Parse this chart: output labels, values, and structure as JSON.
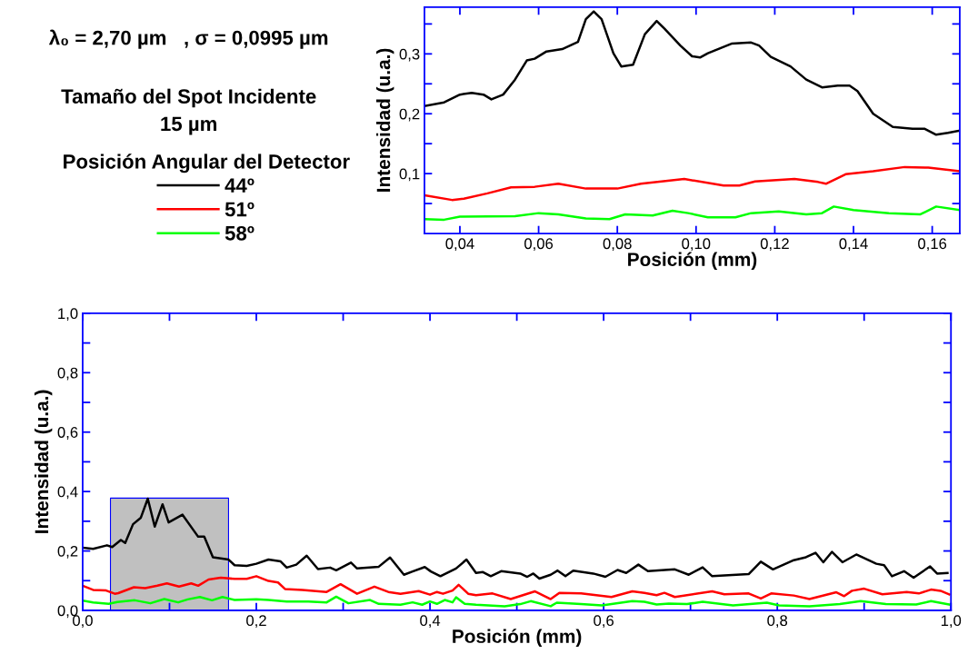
{
  "chart_data": [
    {
      "type": "line",
      "xlabel": "Posición (mm)",
      "ylabel": "Intensidad (u.a.)",
      "legend_title": "Posición Angular del Detector",
      "legend": "left",
      "grid": false,
      "annotations": [
        "λ₀ = 2,70 µm   , σ = 0,0995 µm",
        "Tamaño del Spot Incidente",
        "15 µm"
      ],
      "xlim": [
        0.031,
        0.167
      ],
      "xticks": [
        {
          "value": 0.04,
          "label": "0,04"
        },
        {
          "value": 0.06,
          "label": "0,06"
        },
        {
          "value": 0.08,
          "label": "0,08"
        },
        {
          "value": 0.1,
          "label": "0,10"
        },
        {
          "value": 0.12,
          "label": "0,12"
        },
        {
          "value": 0.14,
          "label": "0,14"
        },
        {
          "value": 0.16,
          "label": "0,16"
        }
      ],
      "ylim": [
        0,
        0.378
      ],
      "yticks": [
        {
          "value": 0.05,
          "label": null
        },
        {
          "value": 0.1,
          "label": "0,1"
        },
        {
          "value": 0.15,
          "label": null
        },
        {
          "value": 0.2,
          "label": "0,2"
        },
        {
          "value": 0.25,
          "label": null
        },
        {
          "value": 0.3,
          "label": "0,3"
        },
        {
          "value": 0.35,
          "label": null
        }
      ],
      "series": [
        {
          "name": "44º",
          "color": "#000000",
          "x": [
            0.031,
            0.036,
            0.04,
            0.043,
            0.046,
            0.048,
            0.051,
            0.054,
            0.057,
            0.059,
            0.062,
            0.066,
            0.07,
            0.072,
            0.074,
            0.076,
            0.079,
            0.081,
            0.084,
            0.087,
            0.09,
            0.092,
            0.096,
            0.099,
            0.101,
            0.103,
            0.106,
            0.109,
            0.114,
            0.116,
            0.119,
            0.124,
            0.128,
            0.132,
            0.136,
            0.139,
            0.141,
            0.145,
            0.15,
            0.155,
            0.158,
            0.161,
            0.164,
            0.167
          ],
          "values": [
            0.213,
            0.219,
            0.232,
            0.235,
            0.232,
            0.224,
            0.232,
            0.257,
            0.289,
            0.292,
            0.304,
            0.308,
            0.32,
            0.358,
            0.371,
            0.358,
            0.301,
            0.279,
            0.282,
            0.333,
            0.355,
            0.342,
            0.314,
            0.296,
            0.294,
            0.301,
            0.309,
            0.317,
            0.319,
            0.314,
            0.295,
            0.279,
            0.257,
            0.244,
            0.247,
            0.247,
            0.238,
            0.2,
            0.178,
            0.175,
            0.175,
            0.165,
            0.168,
            0.172
          ]
        },
        {
          "name": "51º",
          "color": "#ff0000",
          "x": [
            0.031,
            0.038,
            0.041,
            0.047,
            0.053,
            0.059,
            0.065,
            0.072,
            0.08,
            0.086,
            0.097,
            0.107,
            0.111,
            0.115,
            0.125,
            0.131,
            0.133,
            0.138,
            0.145,
            0.153,
            0.159,
            0.167
          ],
          "values": [
            0.064,
            0.056,
            0.058,
            0.067,
            0.077,
            0.078,
            0.083,
            0.075,
            0.075,
            0.083,
            0.091,
            0.08,
            0.08,
            0.087,
            0.091,
            0.086,
            0.083,
            0.099,
            0.104,
            0.111,
            0.11,
            0.104
          ]
        },
        {
          "name": "58º",
          "color": "#00ff00",
          "x": [
            0.031,
            0.036,
            0.04,
            0.054,
            0.06,
            0.065,
            0.072,
            0.078,
            0.082,
            0.089,
            0.094,
            0.098,
            0.103,
            0.11,
            0.114,
            0.121,
            0.128,
            0.132,
            0.135,
            0.14,
            0.149,
            0.157,
            0.161,
            0.167
          ],
          "values": [
            0.024,
            0.023,
            0.028,
            0.029,
            0.034,
            0.032,
            0.025,
            0.024,
            0.032,
            0.03,
            0.038,
            0.034,
            0.027,
            0.027,
            0.034,
            0.037,
            0.032,
            0.034,
            0.045,
            0.039,
            0.034,
            0.032,
            0.045,
            0.039
          ]
        }
      ]
    },
    {
      "type": "line",
      "xlabel": "Posición (mm)",
      "ylabel": "Intensidad (u.a.)",
      "grid": false,
      "bands": [
        {
          "axis": "x",
          "from": 0.032,
          "to": 0.168,
          "color": "#c0c0c0"
        }
      ],
      "xlim": [
        0,
        1
      ],
      "xticks": [
        {
          "value": 0,
          "label": "0,0"
        },
        {
          "value": 0.1,
          "label": null
        },
        {
          "value": 0.2,
          "label": "0,2"
        },
        {
          "value": 0.3,
          "label": null
        },
        {
          "value": 0.4,
          "label": "0,4"
        },
        {
          "value": 0.5,
          "label": null
        },
        {
          "value": 0.6,
          "label": "0,6"
        },
        {
          "value": 0.7,
          "label": null
        },
        {
          "value": 0.8,
          "label": "0,8"
        },
        {
          "value": 0.9,
          "label": null
        },
        {
          "value": 1,
          "label": "1,0"
        }
      ],
      "ylim": [
        0,
        1
      ],
      "yticks": [
        {
          "value": 0,
          "label": "0,0"
        },
        {
          "value": 0.1,
          "label": null
        },
        {
          "value": 0.2,
          "label": "0,2"
        },
        {
          "value": 0.3,
          "label": null
        },
        {
          "value": 0.4,
          "label": "0,4"
        },
        {
          "value": 0.5,
          "label": null
        },
        {
          "value": 0.6,
          "label": "0,6"
        },
        {
          "value": 0.7,
          "label": null
        },
        {
          "value": 0.8,
          "label": "0,8"
        },
        {
          "value": 0.9,
          "label": null
        },
        {
          "value": 1,
          "label": "1,0"
        }
      ],
      "series": [
        {
          "color": "#000000",
          "x": [
            0.0,
            0.012,
            0.028,
            0.034,
            0.044,
            0.049,
            0.058,
            0.067,
            0.075,
            0.083,
            0.092,
            0.099,
            0.115,
            0.133,
            0.14,
            0.15,
            0.168,
            0.175,
            0.189,
            0.2,
            0.214,
            0.228,
            0.235,
            0.246,
            0.258,
            0.271,
            0.285,
            0.292,
            0.309,
            0.316,
            0.341,
            0.354,
            0.37,
            0.38,
            0.394,
            0.401,
            0.412,
            0.43,
            0.442,
            0.453,
            0.461,
            0.47,
            0.482,
            0.504,
            0.512,
            0.519,
            0.526,
            0.539,
            0.547,
            0.556,
            0.565,
            0.588,
            0.602,
            0.616,
            0.626,
            0.64,
            0.651,
            0.682,
            0.698,
            0.714,
            0.725,
            0.767,
            0.781,
            0.795,
            0.819,
            0.833,
            0.844,
            0.853,
            0.863,
            0.875,
            0.891,
            0.914,
            0.923,
            0.932,
            0.946,
            0.957,
            0.976,
            0.984,
            0.996
          ],
          "values": [
            0.211,
            0.207,
            0.219,
            0.213,
            0.237,
            0.227,
            0.29,
            0.312,
            0.376,
            0.282,
            0.357,
            0.296,
            0.322,
            0.248,
            0.248,
            0.179,
            0.171,
            0.152,
            0.15,
            0.157,
            0.171,
            0.165,
            0.144,
            0.154,
            0.184,
            0.139,
            0.144,
            0.135,
            0.161,
            0.141,
            0.147,
            0.178,
            0.12,
            0.131,
            0.146,
            0.131,
            0.115,
            0.141,
            0.171,
            0.126,
            0.129,
            0.115,
            0.132,
            0.124,
            0.113,
            0.124,
            0.107,
            0.12,
            0.134,
            0.115,
            0.134,
            0.124,
            0.113,
            0.136,
            0.126,
            0.154,
            0.132,
            0.138,
            0.12,
            0.145,
            0.115,
            0.122,
            0.164,
            0.138,
            0.169,
            0.179,
            0.194,
            0.162,
            0.197,
            0.162,
            0.188,
            0.157,
            0.152,
            0.115,
            0.132,
            0.11,
            0.148,
            0.124,
            0.126
          ]
        },
        {
          "color": "#ff0000",
          "x": [
            0.0,
            0.012,
            0.027,
            0.037,
            0.041,
            0.059,
            0.072,
            0.086,
            0.097,
            0.111,
            0.125,
            0.133,
            0.145,
            0.159,
            0.175,
            0.189,
            0.2,
            0.214,
            0.225,
            0.233,
            0.253,
            0.281,
            0.297,
            0.316,
            0.336,
            0.352,
            0.366,
            0.387,
            0.4,
            0.408,
            0.415,
            0.426,
            0.433,
            0.444,
            0.453,
            0.472,
            0.493,
            0.521,
            0.539,
            0.549,
            0.574,
            0.609,
            0.633,
            0.647,
            0.661,
            0.67,
            0.682,
            0.725,
            0.739,
            0.767,
            0.781,
            0.793,
            0.819,
            0.837,
            0.868,
            0.877,
            0.886,
            0.9,
            0.921,
            0.949,
            0.963,
            0.977,
            0.988,
            0.998
          ],
          "values": [
            0.083,
            0.069,
            0.067,
            0.056,
            0.058,
            0.078,
            0.075,
            0.083,
            0.091,
            0.08,
            0.091,
            0.083,
            0.104,
            0.11,
            0.106,
            0.106,
            0.115,
            0.099,
            0.094,
            0.072,
            0.069,
            0.062,
            0.088,
            0.056,
            0.08,
            0.062,
            0.056,
            0.065,
            0.053,
            0.062,
            0.056,
            0.067,
            0.086,
            0.056,
            0.051,
            0.057,
            0.038,
            0.064,
            0.038,
            0.059,
            0.057,
            0.045,
            0.064,
            0.059,
            0.051,
            0.059,
            0.045,
            0.064,
            0.054,
            0.057,
            0.04,
            0.057,
            0.05,
            0.038,
            0.061,
            0.048,
            0.066,
            0.073,
            0.054,
            0.062,
            0.057,
            0.07,
            0.066,
            0.054
          ]
        },
        {
          "color": "#00ff00",
          "x": [
            0.0,
            0.012,
            0.03,
            0.04,
            0.06,
            0.078,
            0.094,
            0.11,
            0.121,
            0.135,
            0.149,
            0.161,
            0.175,
            0.2,
            0.214,
            0.235,
            0.26,
            0.281,
            0.292,
            0.306,
            0.331,
            0.341,
            0.366,
            0.38,
            0.391,
            0.4,
            0.408,
            0.417,
            0.426,
            0.43,
            0.44,
            0.453,
            0.486,
            0.504,
            0.516,
            0.539,
            0.546,
            0.574,
            0.598,
            0.633,
            0.647,
            0.661,
            0.675,
            0.696,
            0.714,
            0.749,
            0.788,
            0.802,
            0.837,
            0.872,
            0.896,
            0.925,
            0.96,
            0.977,
            0.998
          ],
          "values": [
            0.033,
            0.027,
            0.022,
            0.028,
            0.034,
            0.024,
            0.038,
            0.027,
            0.037,
            0.045,
            0.034,
            0.045,
            0.035,
            0.037,
            0.035,
            0.03,
            0.03,
            0.027,
            0.046,
            0.024,
            0.035,
            0.022,
            0.019,
            0.027,
            0.019,
            0.03,
            0.022,
            0.035,
            0.027,
            0.044,
            0.022,
            0.019,
            0.014,
            0.021,
            0.031,
            0.014,
            0.026,
            0.021,
            0.017,
            0.031,
            0.029,
            0.02,
            0.023,
            0.021,
            0.029,
            0.017,
            0.026,
            0.017,
            0.014,
            0.021,
            0.031,
            0.021,
            0.02,
            0.031,
            0.02
          ]
        }
      ]
    }
  ]
}
